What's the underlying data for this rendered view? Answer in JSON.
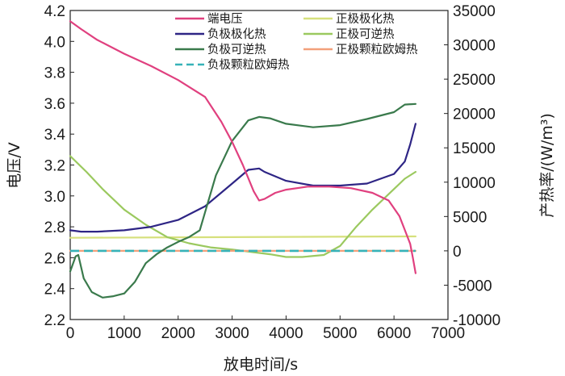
{
  "chart_data": {
    "type": "line",
    "title": "",
    "xlabel": "放电时间/s",
    "ylabel_left": "电压/V",
    "ylabel_right": "产热率/(W/m³)",
    "xlim": [
      0,
      7000
    ],
    "ylim_left": [
      2.2,
      4.2
    ],
    "ylim_right": [
      -10000,
      35000
    ],
    "x_ticks": [
      0,
      1000,
      2000,
      3000,
      4000,
      5000,
      6000,
      7000
    ],
    "y_left_ticks": [
      2.2,
      2.4,
      2.6,
      2.8,
      3.0,
      3.2,
      3.4,
      3.6,
      3.8,
      4.0,
      4.2
    ],
    "y_right_ticks": [
      -10000,
      -5000,
      0,
      5000,
      10000,
      15000,
      20000,
      25000,
      30000,
      35000
    ],
    "grid": false,
    "legend_position": "top",
    "series": [
      {
        "name": "端电压",
        "axis": "left",
        "color": "#e0407f",
        "dash": "solid",
        "x": [
          0,
          200,
          500,
          1000,
          1500,
          2000,
          2500,
          2800,
          3000,
          3200,
          3400,
          3500,
          3600,
          3800,
          4000,
          4400,
          4800,
          5200,
          5600,
          5900,
          6100,
          6200,
          6300,
          6350,
          6400
        ],
        "y": [
          4.13,
          4.08,
          4.01,
          3.92,
          3.84,
          3.75,
          3.64,
          3.48,
          3.35,
          3.2,
          3.03,
          2.97,
          2.98,
          3.02,
          3.04,
          3.06,
          3.06,
          3.05,
          3.02,
          2.97,
          2.87,
          2.78,
          2.69,
          2.6,
          2.5
        ]
      },
      {
        "name": "负极极化热",
        "axis": "right",
        "color": "#2e2585",
        "dash": "solid",
        "x": [
          0,
          200,
          500,
          1000,
          1500,
          2000,
          2500,
          3000,
          3300,
          3500,
          3600,
          4000,
          4500,
          5000,
          5500,
          6000,
          6200,
          6300,
          6400
        ],
        "y": [
          3000,
          2800,
          2800,
          3000,
          3500,
          4500,
          6500,
          9800,
          11800,
          12000,
          11500,
          10200,
          9500,
          9500,
          9800,
          11200,
          13000,
          15500,
          18500
        ]
      },
      {
        "name": "负极可逆热",
        "axis": "right",
        "color": "#3a7a4c",
        "dash": "solid",
        "x": [
          0,
          100,
          150,
          250,
          400,
          600,
          800,
          1000,
          1200,
          1400,
          1600,
          1800,
          2000,
          2200,
          2400,
          2700,
          3000,
          3300,
          3500,
          3700,
          4000,
          4500,
          5000,
          5500,
          6000,
          6200,
          6400
        ],
        "y": [
          -3000,
          -800,
          -600,
          -4000,
          -6000,
          -6800,
          -6600,
          -6200,
          -4500,
          -1800,
          -500,
          500,
          1300,
          2000,
          3000,
          11000,
          16000,
          19000,
          19500,
          19300,
          18500,
          18000,
          18300,
          19200,
          20200,
          21300,
          21400
        ]
      },
      {
        "name": "负极颗粒欧姆热",
        "axis": "right",
        "color": "#36b2b8",
        "dash": "dashed",
        "x": [
          0,
          6400
        ],
        "y": [
          0,
          0
        ]
      },
      {
        "name": "正极极化热",
        "axis": "right",
        "color": "#d6e07c",
        "dash": "solid",
        "x": [
          0,
          6400
        ],
        "y": [
          1900,
          2100
        ]
      },
      {
        "name": "正极可逆热",
        "axis": "right",
        "color": "#9bc95f",
        "dash": "solid",
        "x": [
          0,
          300,
          600,
          1000,
          1400,
          1800,
          2200,
          2600,
          3000,
          3400,
          3700,
          4000,
          4300,
          4700,
          5000,
          5300,
          5600,
          6000,
          6200,
          6400
        ],
        "y": [
          13800,
          11500,
          9000,
          6000,
          3800,
          2000,
          1100,
          500,
          200,
          -200,
          -500,
          -900,
          -900,
          -600,
          700,
          3500,
          6000,
          9000,
          10500,
          11500
        ]
      },
      {
        "name": "正极颗粒欧姆热",
        "axis": "right",
        "color": "#f2a07a",
        "dash": "solid",
        "x": [
          0,
          6400
        ],
        "y": [
          0,
          0
        ]
      }
    ]
  }
}
